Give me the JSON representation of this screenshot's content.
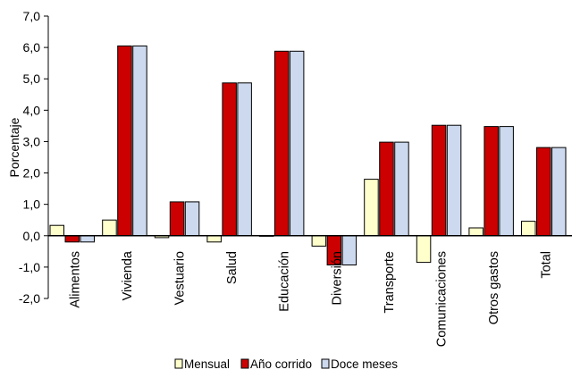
{
  "chart_data": {
    "type": "bar",
    "title": "",
    "xlabel": "",
    "ylabel": "Porcentaje",
    "ylim": [
      -2,
      7
    ],
    "y_ticks": [
      "-2,0",
      "-1,0",
      "0,0",
      "1,0",
      "2,0",
      "3,0",
      "4,0",
      "5,0",
      "6,0",
      "7,0"
    ],
    "grid": false,
    "legend_position": "bottom",
    "categories": [
      "Alimentos",
      "Vivienda",
      "Vestuario",
      "Salud",
      "Educación",
      "Diversión",
      "Transporte",
      "Comunicaciones",
      "Otros gastos",
      "Total"
    ],
    "series": [
      {
        "name": "Mensual",
        "color": "#ffffcc",
        "values": [
          0.33,
          0.5,
          -0.06,
          -0.2,
          0.0,
          -0.33,
          1.8,
          -0.85,
          0.25,
          0.46
        ]
      },
      {
        "name": "Año corrido",
        "color": "#cc0000",
        "values": [
          -0.2,
          6.05,
          1.08,
          4.87,
          5.88,
          -0.93,
          2.98,
          3.52,
          3.48,
          2.81
        ]
      },
      {
        "name": "Doce meses",
        "color": "#ccd9ee",
        "values": [
          -0.2,
          6.05,
          1.08,
          4.87,
          5.88,
          -0.93,
          2.98,
          3.52,
          3.48,
          2.81
        ]
      }
    ]
  }
}
